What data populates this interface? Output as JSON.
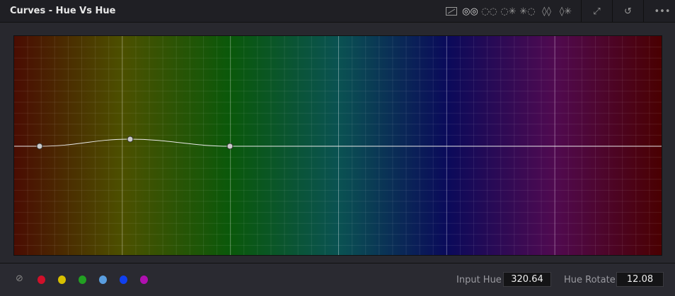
{
  "header": {
    "title": "Curves - Hue Vs Hue",
    "tools": [
      {
        "icon": "custom-curve-icon"
      },
      {
        "icon": "hue-vs-hue-icon"
      },
      {
        "icon": "hue-vs-sat-icon"
      },
      {
        "icon": "hue-vs-lum-icon"
      },
      {
        "icon": "lum-vs-sat-icon"
      },
      {
        "icon": "sat-vs-sat-icon"
      },
      {
        "icon": "sat-vs-lum-icon"
      }
    ],
    "expand_icon": "expand-icon",
    "reset_icon": "reset-icon",
    "more_icon": "more-options-icon"
  },
  "curve": {
    "control_points_hue": [
      "red",
      "yellow",
      "green"
    ],
    "selected_point": "yellow"
  },
  "footer": {
    "picker_icon": "eyedropper-icon",
    "swatches": [
      {
        "name": "red",
        "color": "#d0102a"
      },
      {
        "name": "yellow",
        "color": "#d8c000"
      },
      {
        "name": "green",
        "color": "#22a022"
      },
      {
        "name": "cyan",
        "color": "#5a9ee0"
      },
      {
        "name": "blue",
        "color": "#1040f0"
      },
      {
        "name": "magenta",
        "color": "#b010b0"
      }
    ],
    "input_hue_label": "Input Hue",
    "input_hue_value": "320.64",
    "hue_rotate_label": "Hue Rotate",
    "hue_rotate_value": "12.08"
  }
}
